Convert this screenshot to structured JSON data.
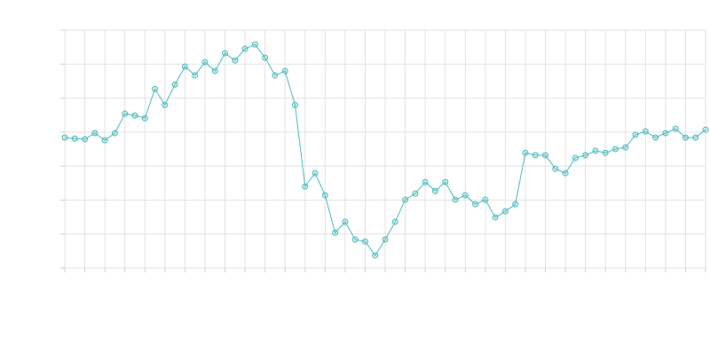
{
  "chart_data": {
    "type": "line",
    "x": [
      0,
      0.5,
      1,
      1.5,
      2,
      2.5,
      3,
      3.5,
      4,
      4.5,
      5,
      5.5,
      6,
      6.5,
      7,
      7.5,
      8,
      8.5,
      9,
      9.5,
      10,
      10.5,
      11,
      11.5,
      12,
      12.5,
      13,
      13.5,
      14,
      14.5,
      15,
      15.5,
      16,
      16.5,
      17,
      17.5,
      18,
      18.5,
      19,
      19.5,
      20,
      20.5,
      21,
      21.5,
      22,
      22.5,
      23,
      23.5,
      24,
      24.5,
      25,
      25.5,
      26,
      26.5,
      27,
      27.5,
      28,
      28.5,
      29,
      29.5,
      30,
      30.5,
      31,
      31.5,
      32
    ],
    "values": [
      3.84,
      3.81,
      3.79,
      3.97,
      3.76,
      3.97,
      4.54,
      4.49,
      4.41,
      5.27,
      4.8,
      5.4,
      5.93,
      5.67,
      6.06,
      5.8,
      6.32,
      6.11,
      6.45,
      6.58,
      6.19,
      5.67,
      5.8,
      4.8,
      2.4,
      2.79,
      2.14,
      1.04,
      1.36,
      0.84,
      0.78,
      0.37,
      0.84,
      1.36,
      2.01,
      2.19,
      2.53,
      2.27,
      2.53,
      2.01,
      2.14,
      1.88,
      2.01,
      1.49,
      1.67,
      1.88,
      3.39,
      3.32,
      3.32,
      2.92,
      2.79,
      3.24,
      3.32,
      3.45,
      3.39,
      3.5,
      3.55,
      3.92,
      4.02,
      3.84,
      3.97,
      4.1,
      3.84,
      3.84,
      4.07
    ],
    "color": "#4dbdbd",
    "xlim": [
      0,
      32
    ],
    "ylim": [
      0,
      7
    ],
    "xticks": [
      0,
      1,
      2,
      3,
      4,
      5,
      6,
      7,
      8,
      9,
      10,
      11,
      12,
      13,
      14,
      15,
      16,
      17,
      18,
      19,
      20,
      21,
      22,
      23,
      24,
      25,
      26,
      27,
      28,
      29,
      30,
      31,
      32
    ],
    "yticks": [
      0,
      1,
      2,
      3,
      4,
      5,
      6,
      7
    ],
    "grid": true
  }
}
